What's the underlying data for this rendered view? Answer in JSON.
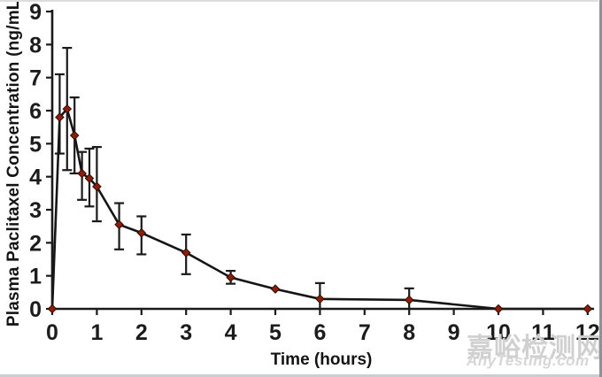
{
  "watermark": {
    "cn": "嘉峪检测网",
    "en": "AnyTesting.com"
  },
  "chart_data": {
    "type": "line",
    "title": "",
    "xlabel": "Time (hours)",
    "ylabel": "Plasma Paclitaxel Concentration (ng/mL)",
    "xlim": [
      0,
      12
    ],
    "ylim": [
      0,
      9
    ],
    "x_ticks": [
      0,
      1,
      2,
      3,
      4,
      5,
      6,
      7,
      8,
      9,
      10,
      11,
      12
    ],
    "y_ticks": [
      0,
      1,
      2,
      3,
      4,
      5,
      6,
      7,
      8,
      9
    ],
    "grid": false,
    "legend_position": "none",
    "marker": "diamond",
    "error_bars": true,
    "colors": {
      "line": "#151515",
      "marker_fill": "#8b1e08",
      "marker_edge": "#2e0b03",
      "axis": "#1a1a1a",
      "tick_text": "#1c1c1c"
    },
    "series": [
      {
        "name": "plasma-paclitaxel-concentration",
        "points": [
          {
            "t": 0,
            "v": 0
          },
          {
            "t": 0.167,
            "v": 5.8,
            "lo": 4.7,
            "hi": 7.1
          },
          {
            "t": 0.333,
            "v": 6.05,
            "lo": 4.2,
            "hi": 7.9
          },
          {
            "t": 0.5,
            "v": 5.25,
            "lo": 4.1,
            "hi": 6.4
          },
          {
            "t": 0.667,
            "v": 4.1,
            "lo": 3.3,
            "hi": 4.75
          },
          {
            "t": 0.833,
            "v": 3.95,
            "lo": 3.1,
            "hi": 4.85
          },
          {
            "t": 1,
            "v": 3.7,
            "lo": 2.65,
            "hi": 4.9
          },
          {
            "t": 1.5,
            "v": 2.55,
            "lo": 1.8,
            "hi": 3.2
          },
          {
            "t": 2,
            "v": 2.3,
            "lo": 1.65,
            "hi": 2.8
          },
          {
            "t": 3,
            "v": 1.7,
            "lo": 1.05,
            "hi": 2.25
          },
          {
            "t": 4,
            "v": 0.95,
            "lo": 0.76,
            "hi": 1.15
          },
          {
            "t": 5,
            "v": 0.6
          },
          {
            "t": 6,
            "v": 0.3,
            "lo": 0,
            "hi": 0.78
          },
          {
            "t": 8,
            "v": 0.27,
            "lo": 0,
            "hi": 0.62
          },
          {
            "t": 10,
            "v": 0
          },
          {
            "t": 12,
            "v": 0
          }
        ]
      }
    ]
  }
}
